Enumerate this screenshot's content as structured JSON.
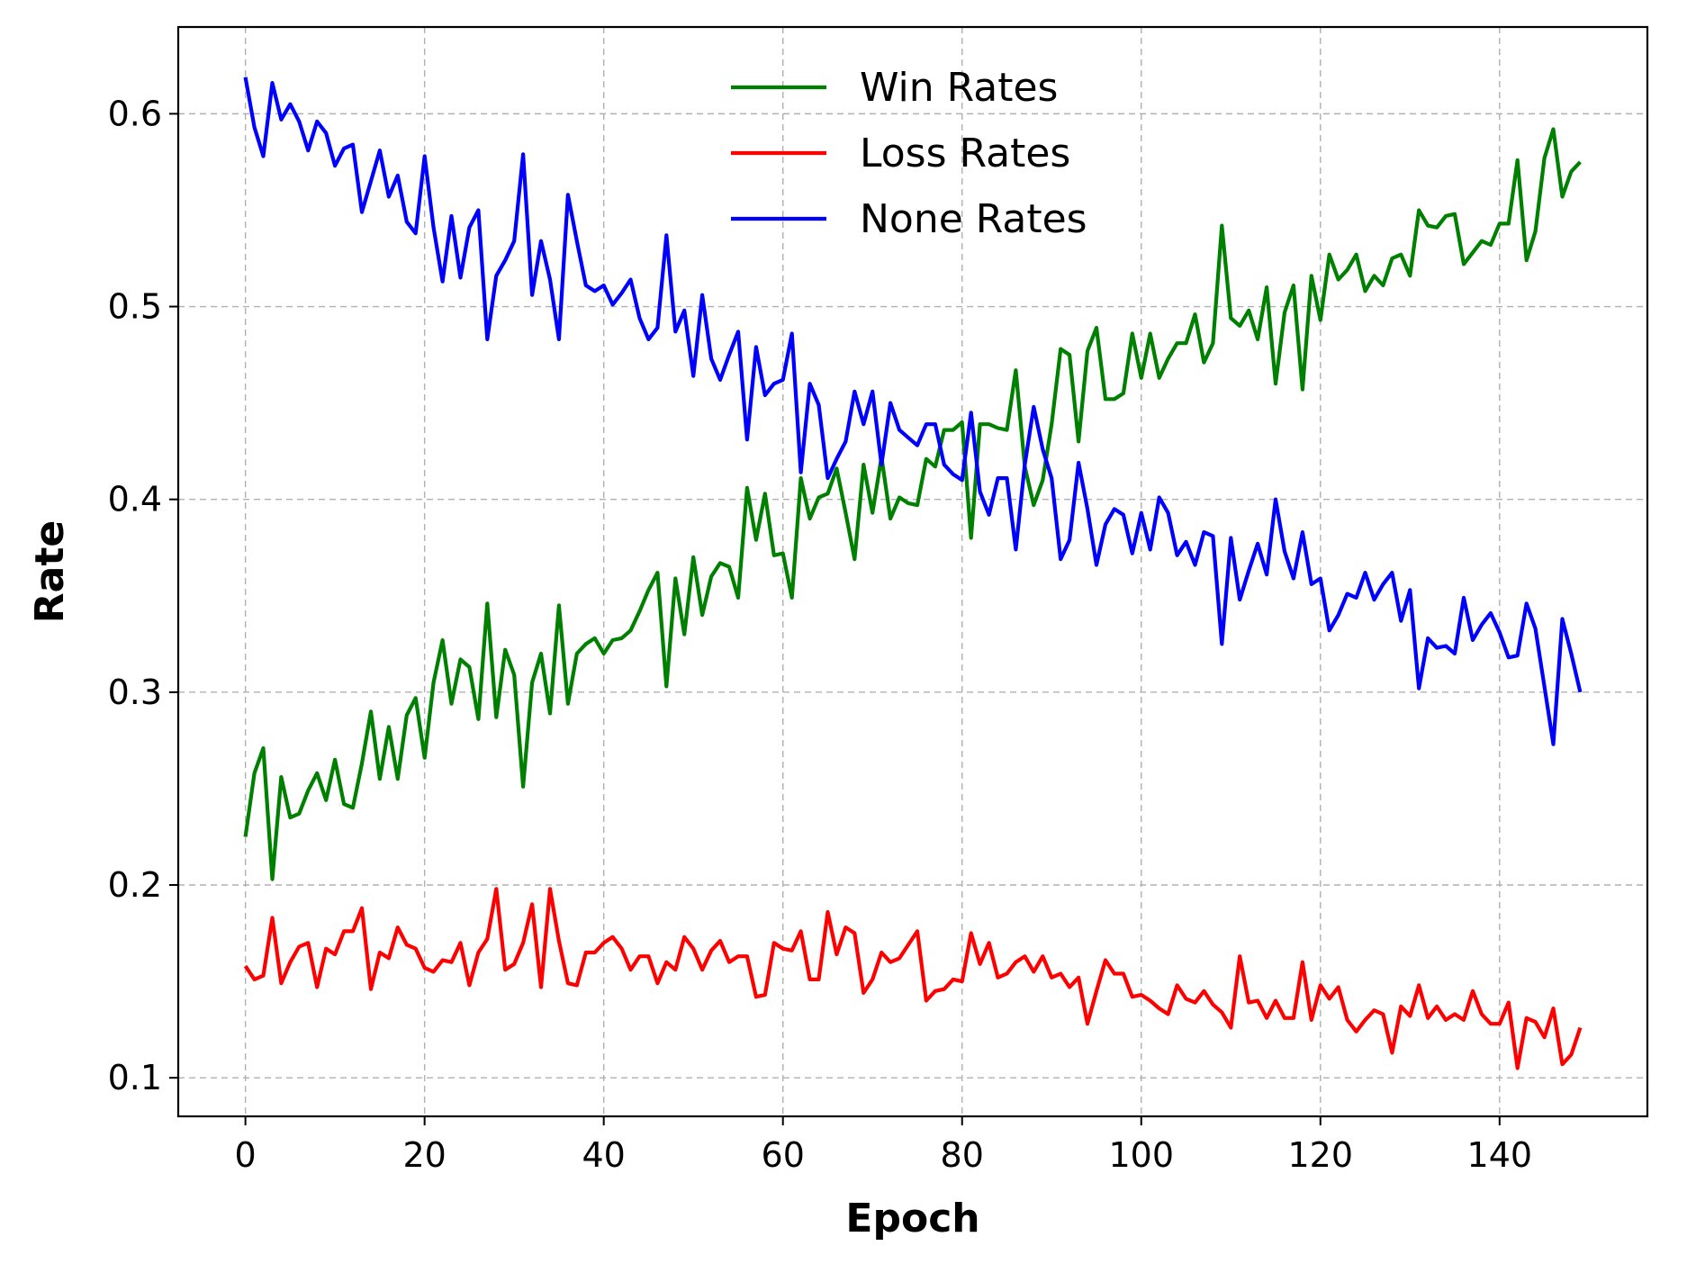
{
  "chart_data": {
    "type": "line",
    "title": "",
    "xlabel": "Epoch",
    "ylabel": "Rate",
    "xlim": [
      -7.5,
      156.5
    ],
    "ylim": [
      0.08,
      0.645
    ],
    "xticks": [
      0,
      20,
      40,
      60,
      80,
      100,
      120,
      140
    ],
    "xtick_labels": [
      "0",
      "20",
      "40",
      "60",
      "80",
      "100",
      "120",
      "140"
    ],
    "yticks": [
      0.1,
      0.2,
      0.3,
      0.4,
      0.5,
      0.6
    ],
    "ytick_labels": [
      "0.1",
      "0.2",
      "0.3",
      "0.4",
      "0.5",
      "0.6"
    ],
    "grid": true,
    "legend_position": "top-center",
    "x": [
      0,
      1,
      2,
      3,
      4,
      5,
      6,
      7,
      8,
      9,
      10,
      11,
      12,
      13,
      14,
      15,
      16,
      17,
      18,
      19,
      20,
      21,
      22,
      23,
      24,
      25,
      26,
      27,
      28,
      29,
      30,
      31,
      32,
      33,
      34,
      35,
      36,
      37,
      38,
      39,
      40,
      41,
      42,
      43,
      44,
      45,
      46,
      47,
      48,
      49,
      50,
      51,
      52,
      53,
      54,
      55,
      56,
      57,
      58,
      59,
      60,
      61,
      62,
      63,
      64,
      65,
      66,
      67,
      68,
      69,
      70,
      71,
      72,
      73,
      74,
      75,
      76,
      77,
      78,
      79,
      80,
      81,
      82,
      83,
      84,
      85,
      86,
      87,
      88,
      89,
      90,
      91,
      92,
      93,
      94,
      95,
      96,
      97,
      98,
      99,
      100,
      101,
      102,
      103,
      104,
      105,
      106,
      107,
      108,
      109,
      110,
      111,
      112,
      113,
      114,
      115,
      116,
      117,
      118,
      119,
      120,
      121,
      122,
      123,
      124,
      125,
      126,
      127,
      128,
      129,
      130,
      131,
      132,
      133,
      134,
      135,
      136,
      137,
      138,
      139,
      140,
      141,
      142,
      143,
      144,
      145,
      146,
      147,
      148,
      149
    ],
    "series": [
      {
        "name": "Win Rates",
        "color": "#008000",
        "values": [
          0.225,
          0.258,
          0.271,
          0.203,
          0.256,
          0.235,
          0.237,
          0.249,
          0.258,
          0.244,
          0.265,
          0.242,
          0.24,
          0.263,
          0.29,
          0.255,
          0.282,
          0.255,
          0.288,
          0.297,
          0.266,
          0.305,
          0.327,
          0.294,
          0.317,
          0.313,
          0.286,
          0.346,
          0.287,
          0.322,
          0.309,
          0.251,
          0.305,
          0.32,
          0.289,
          0.345,
          0.294,
          0.32,
          0.325,
          0.328,
          0.32,
          0.327,
          0.328,
          0.332,
          0.342,
          0.353,
          0.362,
          0.303,
          0.359,
          0.33,
          0.37,
          0.34,
          0.36,
          0.367,
          0.365,
          0.349,
          0.406,
          0.379,
          0.403,
          0.371,
          0.372,
          0.349,
          0.411,
          0.39,
          0.401,
          0.403,
          0.416,
          0.393,
          0.369,
          0.418,
          0.393,
          0.422,
          0.39,
          0.401,
          0.398,
          0.397,
          0.421,
          0.417,
          0.436,
          0.436,
          0.44,
          0.38,
          0.439,
          0.439,
          0.437,
          0.436,
          0.467,
          0.417,
          0.397,
          0.41,
          0.439,
          0.478,
          0.475,
          0.43,
          0.477,
          0.489,
          0.452,
          0.452,
          0.455,
          0.486,
          0.463,
          0.486,
          0.463,
          0.473,
          0.481,
          0.481,
          0.496,
          0.471,
          0.481,
          0.542,
          0.494,
          0.49,
          0.498,
          0.483,
          0.51,
          0.46,
          0.497,
          0.511,
          0.457,
          0.516,
          0.493,
          0.527,
          0.514,
          0.519,
          0.527,
          0.508,
          0.516,
          0.511,
          0.525,
          0.527,
          0.516,
          0.55,
          0.542,
          0.541,
          0.547,
          0.548,
          0.522,
          0.528,
          0.534,
          0.532,
          0.543,
          0.543,
          0.576,
          0.524,
          0.539,
          0.577,
          0.592,
          0.557,
          0.57,
          0.575
        ]
      },
      {
        "name": "Loss Rates",
        "color": "#ff0000",
        "values": [
          0.158,
          0.151,
          0.153,
          0.183,
          0.149,
          0.16,
          0.168,
          0.17,
          0.147,
          0.167,
          0.164,
          0.176,
          0.176,
          0.188,
          0.146,
          0.165,
          0.162,
          0.178,
          0.169,
          0.167,
          0.157,
          0.155,
          0.161,
          0.16,
          0.17,
          0.148,
          0.165,
          0.172,
          0.198,
          0.156,
          0.159,
          0.17,
          0.19,
          0.147,
          0.198,
          0.171,
          0.149,
          0.148,
          0.165,
          0.165,
          0.17,
          0.173,
          0.167,
          0.156,
          0.163,
          0.163,
          0.149,
          0.16,
          0.156,
          0.173,
          0.167,
          0.156,
          0.166,
          0.171,
          0.16,
          0.163,
          0.163,
          0.142,
          0.143,
          0.17,
          0.167,
          0.166,
          0.176,
          0.151,
          0.151,
          0.186,
          0.164,
          0.178,
          0.175,
          0.144,
          0.151,
          0.165,
          0.16,
          0.162,
          0.169,
          0.176,
          0.14,
          0.145,
          0.146,
          0.151,
          0.15,
          0.175,
          0.159,
          0.17,
          0.152,
          0.154,
          0.16,
          0.163,
          0.155,
          0.163,
          0.152,
          0.154,
          0.147,
          0.152,
          0.128,
          0.145,
          0.161,
          0.154,
          0.154,
          0.142,
          0.143,
          0.14,
          0.136,
          0.133,
          0.148,
          0.141,
          0.139,
          0.145,
          0.138,
          0.134,
          0.126,
          0.163,
          0.139,
          0.14,
          0.131,
          0.14,
          0.131,
          0.131,
          0.16,
          0.13,
          0.148,
          0.141,
          0.147,
          0.13,
          0.124,
          0.13,
          0.135,
          0.133,
          0.113,
          0.137,
          0.132,
          0.148,
          0.131,
          0.137,
          0.13,
          0.133,
          0.13,
          0.145,
          0.133,
          0.128,
          0.128,
          0.139,
          0.105,
          0.131,
          0.129,
          0.121,
          0.136,
          0.107,
          0.112,
          0.126
        ]
      },
      {
        "name": "None Rates",
        "color": "#0000ff",
        "values": [
          0.619,
          0.593,
          0.578,
          0.616,
          0.597,
          0.605,
          0.596,
          0.581,
          0.596,
          0.59,
          0.573,
          0.582,
          0.584,
          0.549,
          0.565,
          0.581,
          0.557,
          0.568,
          0.544,
          0.538,
          0.578,
          0.541,
          0.513,
          0.547,
          0.515,
          0.541,
          0.55,
          0.483,
          0.516,
          0.524,
          0.534,
          0.579,
          0.506,
          0.534,
          0.514,
          0.483,
          0.558,
          0.534,
          0.511,
          0.508,
          0.511,
          0.501,
          0.507,
          0.514,
          0.494,
          0.483,
          0.489,
          0.537,
          0.487,
          0.498,
          0.464,
          0.506,
          0.473,
          0.462,
          0.475,
          0.487,
          0.431,
          0.479,
          0.454,
          0.46,
          0.462,
          0.486,
          0.414,
          0.46,
          0.449,
          0.411,
          0.421,
          0.43,
          0.456,
          0.439,
          0.456,
          0.418,
          0.45,
          0.436,
          0.432,
          0.428,
          0.439,
          0.439,
          0.418,
          0.413,
          0.41,
          0.445,
          0.404,
          0.392,
          0.411,
          0.411,
          0.374,
          0.418,
          0.448,
          0.426,
          0.411,
          0.369,
          0.379,
          0.419,
          0.395,
          0.366,
          0.387,
          0.395,
          0.392,
          0.372,
          0.393,
          0.374,
          0.401,
          0.393,
          0.371,
          0.378,
          0.366,
          0.383,
          0.381,
          0.325,
          0.38,
          0.348,
          0.363,
          0.377,
          0.361,
          0.4,
          0.373,
          0.359,
          0.383,
          0.356,
          0.359,
          0.332,
          0.34,
          0.351,
          0.349,
          0.362,
          0.348,
          0.356,
          0.362,
          0.337,
          0.353,
          0.302,
          0.328,
          0.323,
          0.324,
          0.32,
          0.349,
          0.327,
          0.335,
          0.341,
          0.331,
          0.318,
          0.319,
          0.346,
          0.333,
          0.303,
          0.273,
          0.338,
          0.32,
          0.3
        ]
      }
    ]
  }
}
